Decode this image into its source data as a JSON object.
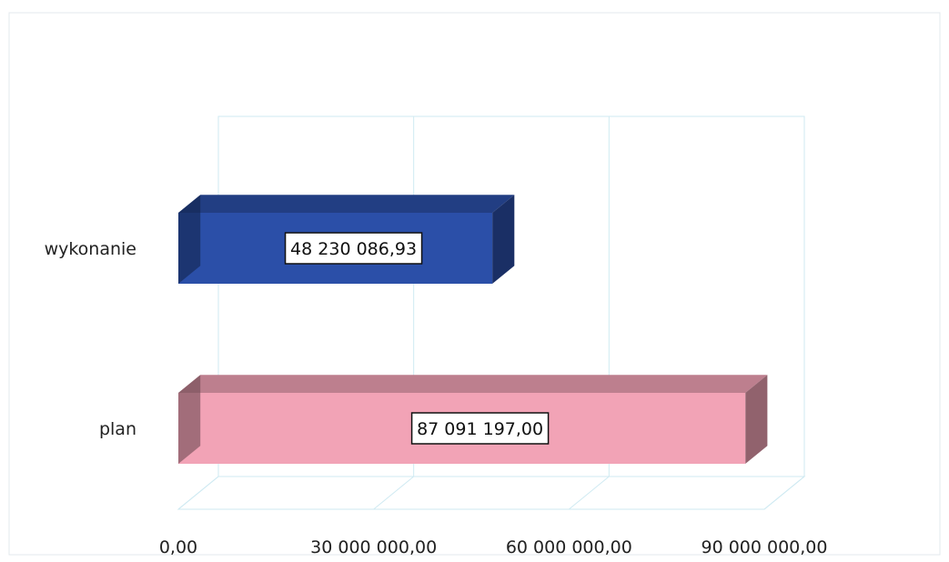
{
  "chart_data": {
    "type": "bar",
    "orientation": "horizontal",
    "three_d": true,
    "categories": [
      "wykonanie",
      "plan"
    ],
    "values": [
      48230086.93,
      87091197.0
    ],
    "value_labels": [
      "48 230 086,93",
      "87 091 197,00"
    ],
    "colors": [
      "#2B4FA8",
      "#F2A3B6"
    ],
    "xlim": [
      0,
      90000000
    ],
    "x_ticks": [
      0,
      30000000,
      60000000,
      90000000
    ],
    "x_tick_labels": [
      "0,00",
      "30 000 000,00",
      "60 000 000,00",
      "90 000 000,00"
    ],
    "grid": true,
    "legend": "none",
    "title": "",
    "xlabel": "",
    "ylabel": ""
  }
}
